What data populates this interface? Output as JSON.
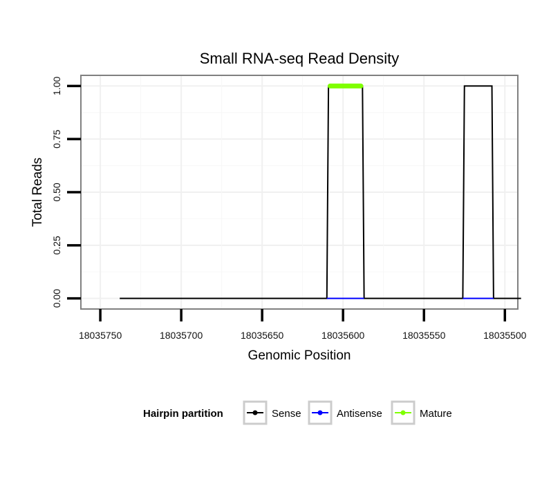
{
  "chart_data": {
    "type": "line",
    "title": "Small RNA-seq Read Density",
    "xlabel": "Genomic Position",
    "ylabel": "Total Reads",
    "x_reversed": true,
    "xlim": [
      18035762,
      18035492
    ],
    "ylim": [
      -0.05,
      1.05
    ],
    "x_ticks": [
      18035750,
      18035700,
      18035650,
      18035600,
      18035550,
      18035500
    ],
    "x_tick_labels": [
      "18035750",
      "18035700",
      "18035650",
      "18035600",
      "18035550",
      "18035500"
    ],
    "y_ticks": [
      0,
      0.25,
      0.5,
      0.75,
      1
    ],
    "y_tick_labels": [
      "0.00",
      "0.25",
      "0.50",
      "0.75",
      "1.00"
    ],
    "grid": true,
    "series": [
      {
        "name": "Sense",
        "color": "#000000",
        "x": [
          18035738,
          18035610,
          18035609,
          18035588,
          18035587,
          18035526,
          18035525,
          18035508,
          18035507,
          18035490
        ],
        "y": [
          0,
          0,
          1,
          1,
          0,
          0,
          1,
          1,
          0,
          0
        ]
      },
      {
        "name": "Antisense",
        "color": "#0000ff",
        "x": [
          18035610,
          18035587,
          null,
          18035526,
          18035507
        ],
        "y": [
          0,
          0,
          null,
          0,
          0
        ]
      },
      {
        "name": "Mature",
        "color": "#7fff00",
        "x": [
          18035608,
          18035589
        ],
        "y": [
          1,
          1
        ]
      }
    ]
  },
  "legend": {
    "title": "Hairpin partition",
    "items": [
      {
        "label": "Sense",
        "color": "#000000"
      },
      {
        "label": "Antisense",
        "color": "#0000ff"
      },
      {
        "label": "Mature",
        "color": "#7fff00"
      }
    ]
  }
}
